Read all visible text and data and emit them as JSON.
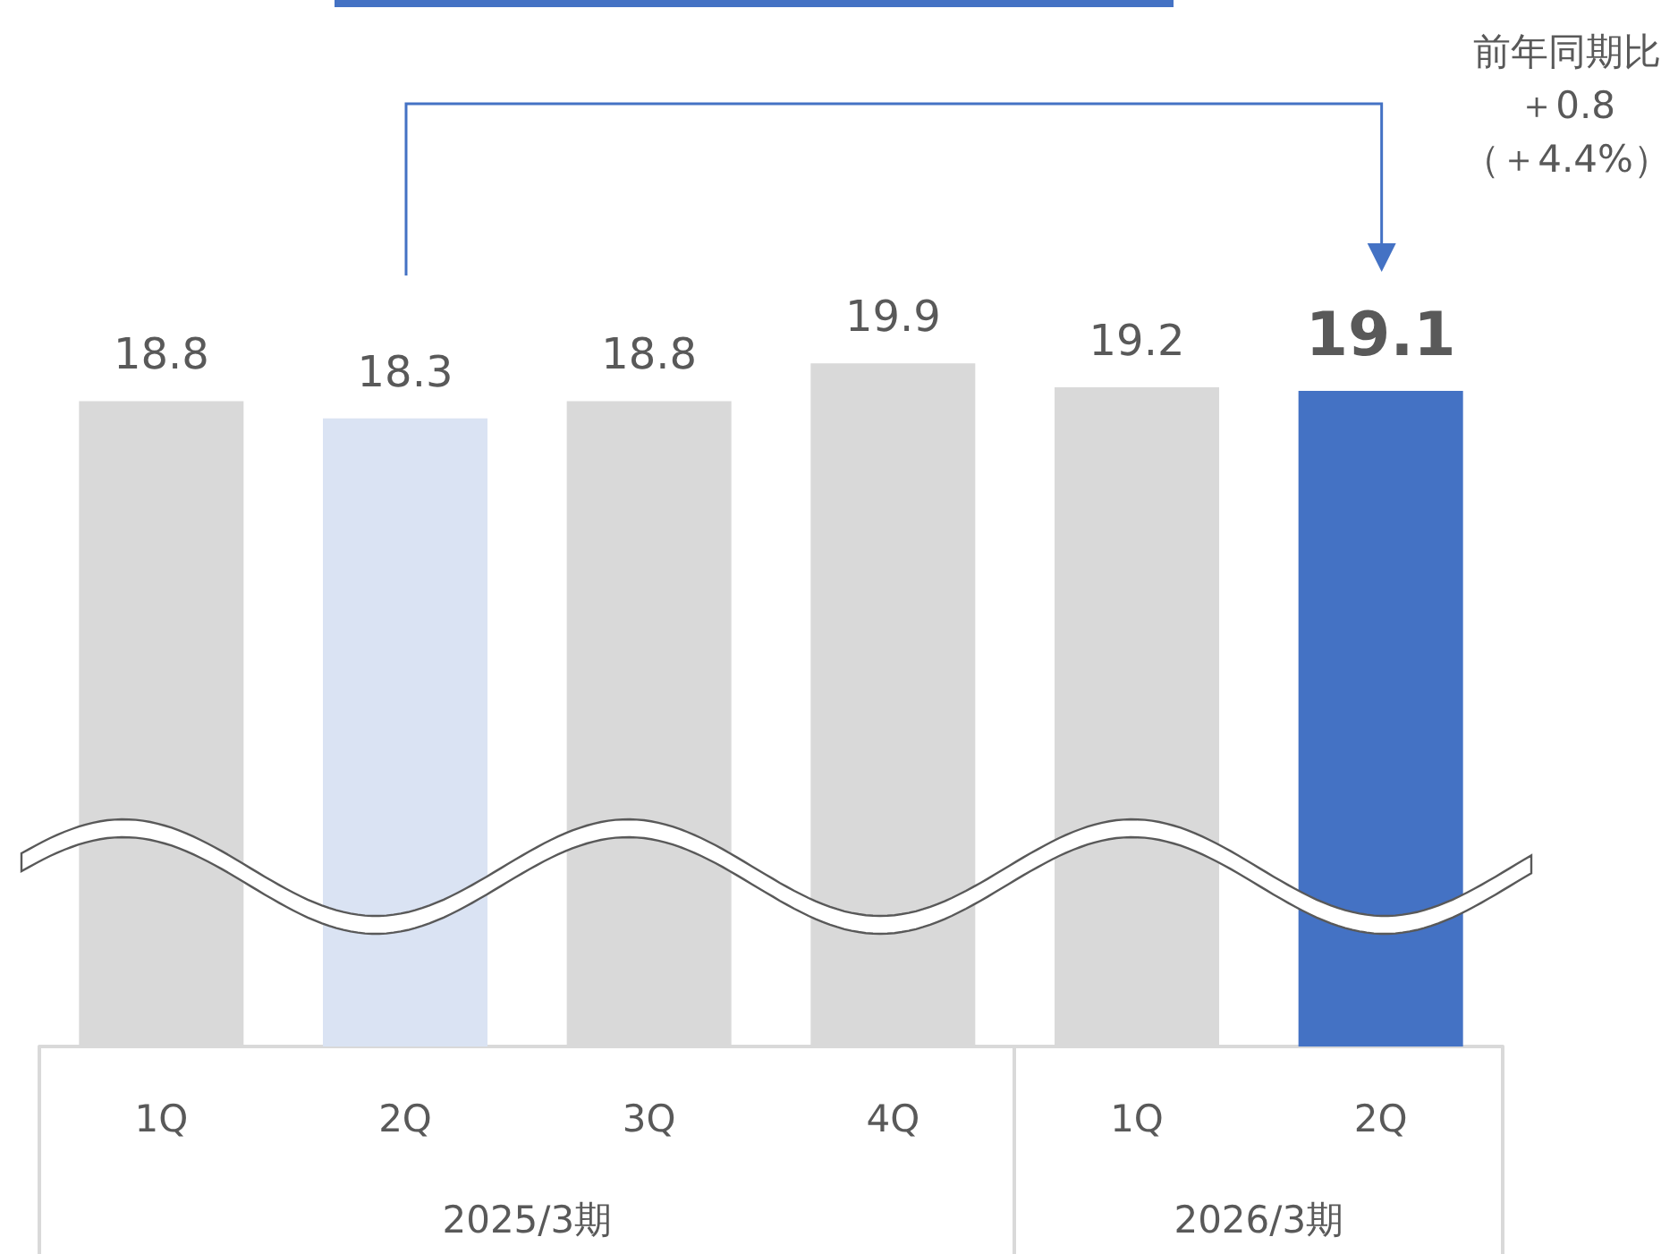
{
  "chart_data": {
    "type": "bar",
    "categories": [
      "1Q",
      "2Q",
      "3Q",
      "4Q",
      "1Q",
      "2Q"
    ],
    "values": [
      18.8,
      18.3,
      18.8,
      19.9,
      19.2,
      19.1
    ],
    "colors": [
      "#d9d9d9",
      "#dae3f3",
      "#d9d9d9",
      "#d9d9d9",
      "#d9d9d9",
      "#4472c4"
    ],
    "tick_labels": "x",
    "data_labels": true,
    "annotations": [
      "2025/3期",
      "2026/3期",
      "前年同期比＋0.8（＋4.4%）"
    ]
  }
}
